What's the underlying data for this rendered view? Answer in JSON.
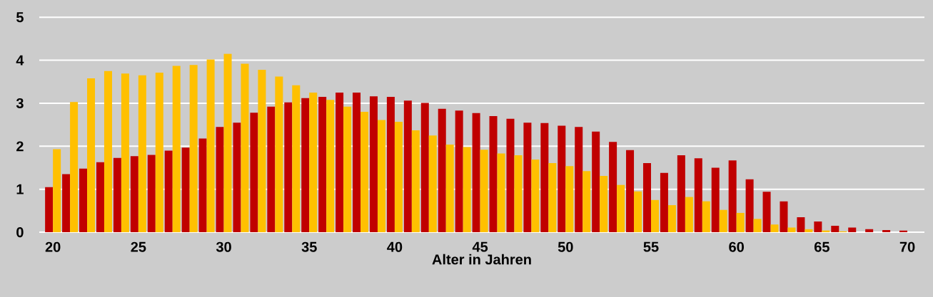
{
  "chart_data": {
    "type": "bar",
    "xlabel": "Alter in Jahren",
    "x": [
      20,
      21,
      22,
      23,
      24,
      25,
      26,
      27,
      28,
      29,
      30,
      31,
      32,
      33,
      34,
      35,
      36,
      37,
      38,
      39,
      40,
      41,
      42,
      43,
      44,
      45,
      46,
      47,
      48,
      49,
      50,
      51,
      52,
      53,
      54,
      55,
      56,
      57,
      58,
      59,
      60,
      61,
      62,
      63,
      64,
      65,
      66,
      67,
      68,
      69,
      70
    ],
    "series": [
      {
        "color": "#c00000",
        "values": [
          1.05,
          1.35,
          1.48,
          1.63,
          1.73,
          1.77,
          1.8,
          1.9,
          1.97,
          2.18,
          2.45,
          2.55,
          2.78,
          2.92,
          3.02,
          3.12,
          3.15,
          3.25,
          3.25,
          3.16,
          3.15,
          3.06,
          3.01,
          2.87,
          2.83,
          2.77,
          2.7,
          2.64,
          2.55,
          2.54,
          2.48,
          2.45,
          2.34,
          2.1,
          1.91,
          1.61,
          1.38,
          1.79,
          1.72,
          1.5,
          1.67,
          1.23,
          0.94,
          0.72,
          0.35,
          0.25,
          0.15,
          0.11,
          0.07,
          0.05,
          0.04
        ]
      },
      {
        "color": "#ffc000",
        "values": [
          1.93,
          3.03,
          3.58,
          3.75,
          3.69,
          3.65,
          3.71,
          3.87,
          3.89,
          4.02,
          4.15,
          3.92,
          3.78,
          3.62,
          3.42,
          3.25,
          3.08,
          2.92,
          2.8,
          2.61,
          2.57,
          2.37,
          2.25,
          2.04,
          1.98,
          1.92,
          1.83,
          1.79,
          1.69,
          1.61,
          1.54,
          1.42,
          1.31,
          1.1,
          0.95,
          0.75,
          0.63,
          0.82,
          0.72,
          0.52,
          0.45,
          0.31,
          0.18,
          0.11,
          0.07,
          0.04,
          0.02,
          null,
          0,
          0,
          0
        ]
      }
    ],
    "xlim": [
      19.2,
      71
    ],
    "xticks": [
      20,
      25,
      30,
      35,
      40,
      45,
      50,
      55,
      60,
      65,
      70
    ],
    "ylim": [
      0,
      5.4
    ],
    "yticks": [
      0,
      1,
      2,
      3,
      4,
      5
    ],
    "grid": "y"
  }
}
